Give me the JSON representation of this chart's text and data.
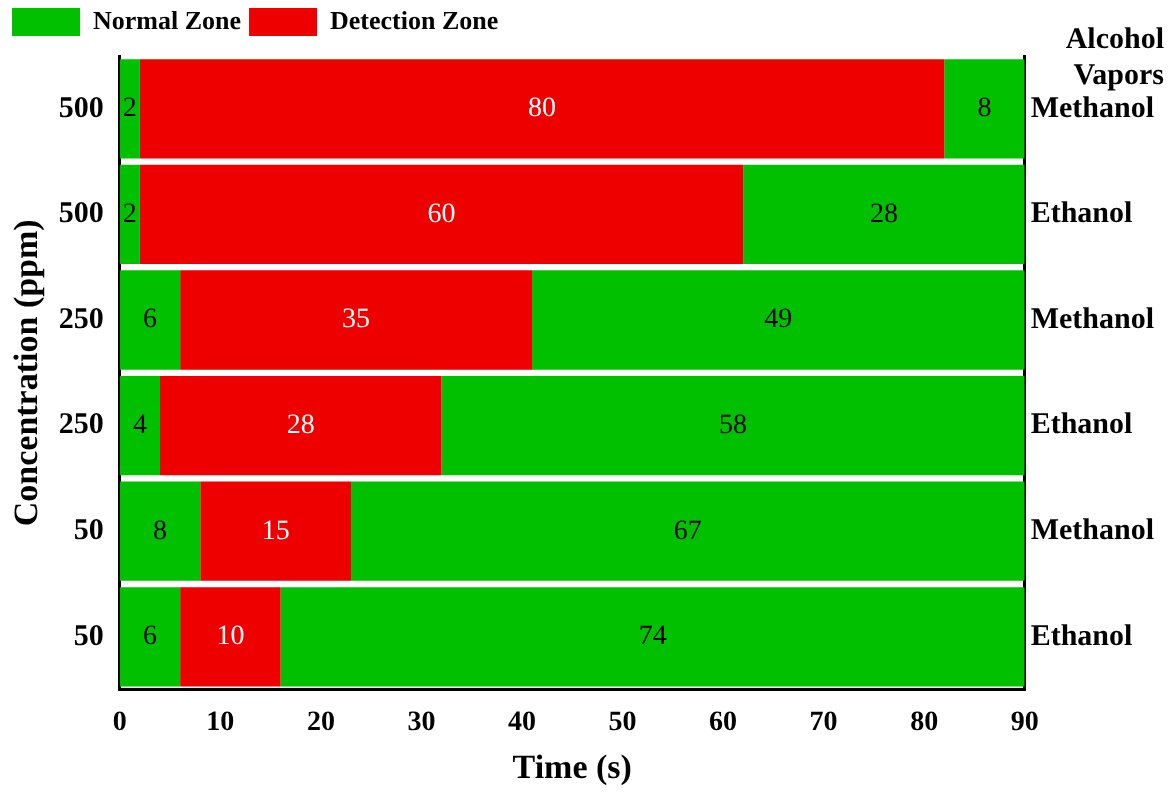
{
  "chart_data": {
    "type": "bar",
    "orientation": "horizontal",
    "stacked": true,
    "xlabel": "Time (s)",
    "ylabel": "Concentration (ppm)",
    "y2label": "Alcohol Vapors",
    "categories": [
      "500",
      "500",
      "250",
      "250",
      "50",
      "50"
    ],
    "y2_categories": [
      "Methanol",
      "Ethanol",
      "Methanol",
      "Ethanol",
      "Methanol",
      "Ethanol"
    ],
    "series": [
      {
        "name": "Normal Zone",
        "color": "#00c000",
        "values": [
          2,
          2,
          6,
          4,
          8,
          6
        ]
      },
      {
        "name": "Detection Zone",
        "color": "#ee0000",
        "values": [
          80,
          60,
          35,
          28,
          15,
          10
        ]
      },
      {
        "color": "#00c000",
        "values": [
          8,
          28,
          49,
          58,
          67,
          74
        ]
      }
    ],
    "xlim": [
      0,
      90
    ],
    "xticks": [
      0,
      10,
      20,
      30,
      40,
      50,
      60,
      70,
      80,
      90
    ],
    "grid": false,
    "legend": "top left",
    "data_labels": true
  }
}
